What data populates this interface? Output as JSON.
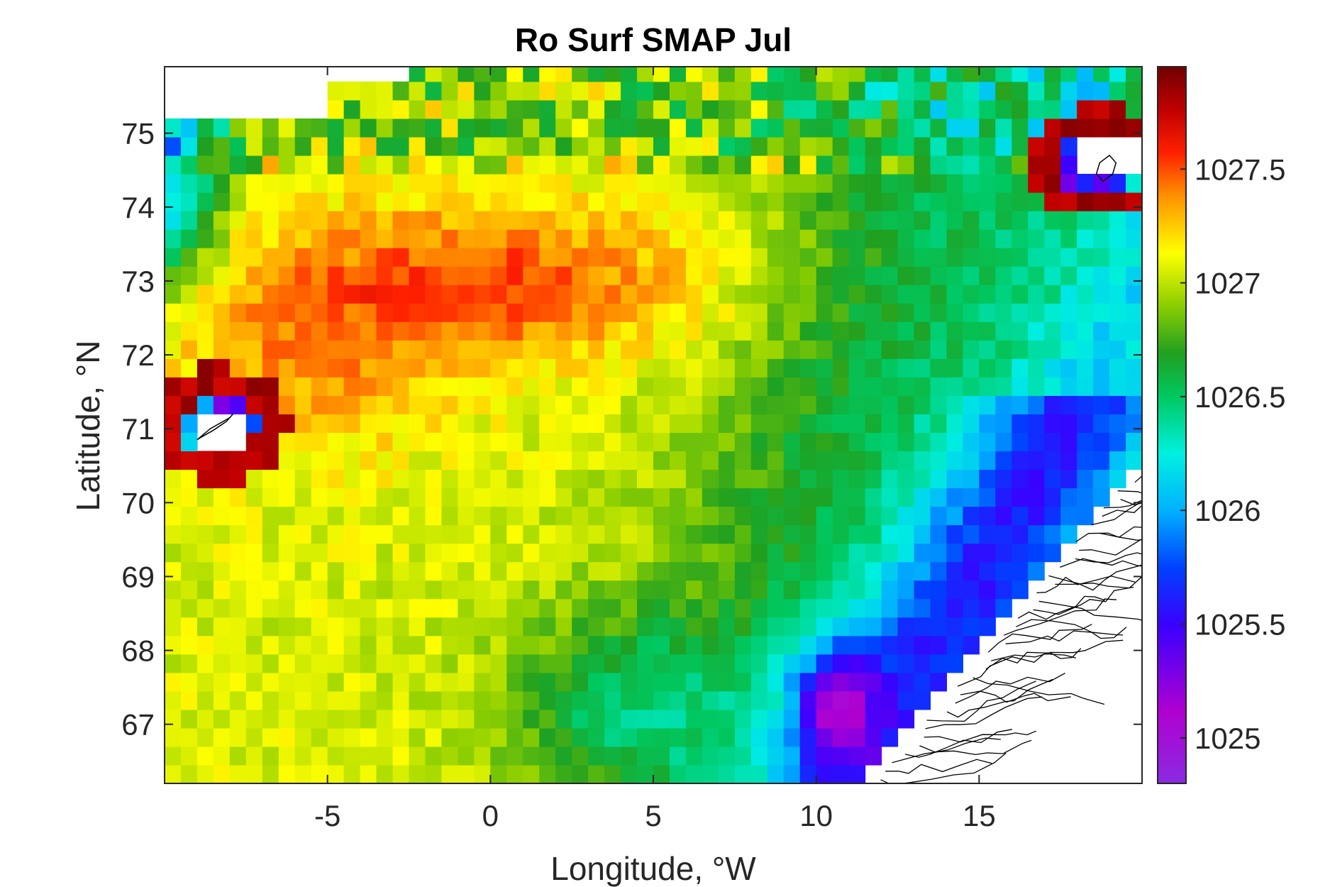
{
  "chart_data": {
    "type": "heatmap",
    "title": "Ro Surf SMAP Jul",
    "xlabel": "Longitude, °W",
    "ylabel": "Latitude, °N",
    "xlim": [
      -10,
      20
    ],
    "ylim": [
      66.2,
      75.9
    ],
    "xticks": [
      -5,
      0,
      5,
      10,
      15
    ],
    "xtick_labels": [
      "-5",
      "0",
      "5",
      "10",
      "15"
    ],
    "yticks": [
      67,
      68,
      69,
      70,
      71,
      72,
      73,
      74,
      75
    ],
    "ytick_labels": [
      "67",
      "68",
      "69",
      "70",
      "71",
      "72",
      "73",
      "74",
      "75"
    ],
    "colorbar": {
      "colormap": "jet-like (purple-blue-cyan-green-yellow-red-darkred)",
      "clim": [
        1024.8,
        1027.95
      ],
      "ticks": [
        1025,
        1025.5,
        1026,
        1026.5,
        1027,
        1027.5
      ],
      "tick_labels": [
        "1025",
        "1025.5",
        "1026",
        "1026.5",
        "1027",
        "1027.5"
      ]
    },
    "grid": "off",
    "regions": [
      {
        "name": "",
        "lon": [
          -10,
          -6
        ],
        "lat": [
          69,
          75.5
        ],
        "approx_value": 1027.3
      },
      {
        "name": "",
        "lon": [
          -6,
          7
        ],
        "lat": [
          72,
          74.5
        ],
        "approx_value": 1027.5
      },
      {
        "name": "",
        "lon": [
          -10,
          3
        ],
        "lat": [
          66.2,
          72
        ],
        "approx_value": 1027.1
      },
      {
        "name": "",
        "lon": [
          1,
          8
        ],
        "lat": [
          66.2,
          68.5
        ],
        "approx_value": 1026.6
      },
      {
        "name": "",
        "lon": [
          9,
          12
        ],
        "lat": [
          66.5,
          68.5
        ],
        "approx_value": 1025.3
      },
      {
        "name": "",
        "lon": [
          10,
          17
        ],
        "lat": [
          68.5,
          71
        ],
        "approx_value": 1026.1
      },
      {
        "name": "",
        "lon": [
          12,
          20
        ],
        "lat": [
          71,
          74
        ],
        "approx_value": 1026.6
      },
      {
        "name": "",
        "lon": [
          -10,
          -8
        ],
        "lat": [
          73.5,
          75
        ],
        "approx_value": 1026.0
      },
      {
        "name": "",
        "lon": [
          -1,
          15
        ],
        "lat": [
          74.8,
          75.9
        ],
        "approx_value": 1026.9
      }
    ],
    "land_outlines": [
      "Jan Mayen island near -8.5°W, 71°N",
      "Bear Island near 19°W, 74.5°N",
      "Norwegian coastline east of 12°W, 66-70.5°N"
    ]
  }
}
